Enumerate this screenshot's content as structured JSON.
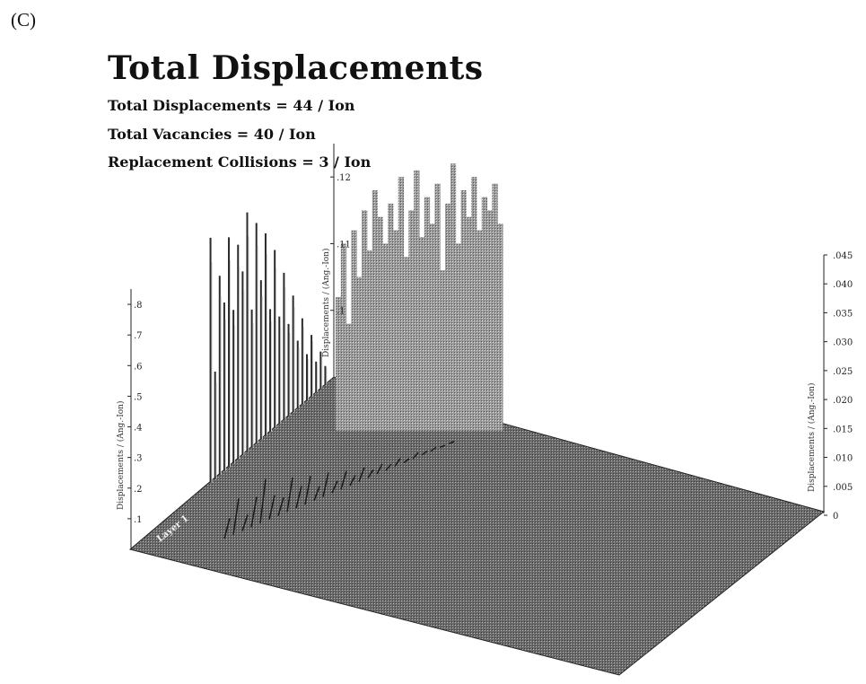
{
  "panel_label": "(C)",
  "chart_data": {
    "type": "area",
    "title": "Total Displacements",
    "stats": [
      "Total Displacements = 44 / Ion",
      "Total Vacancies = 40 / Ion",
      "Replacement Collisions = 3 / Ion"
    ],
    "grid": false,
    "axes": {
      "left": {
        "label": "Displacements / (Ang.-Ion)",
        "ticks": [
          ".1",
          ".2",
          ".3",
          ".4",
          ".5",
          ".6",
          ".7",
          ".8"
        ],
        "ylim": [
          0,
          0.85
        ]
      },
      "back": {
        "label": "Displacements / (Ang.-Ion)",
        "ticks": [
          ".1",
          ".11",
          ".12"
        ],
        "ylim": [
          0.09,
          0.125
        ]
      },
      "right": {
        "label": "Displacements / (Ang.-Ion)",
        "ticks": [
          "0",
          ".005",
          ".010",
          ".015",
          ".020",
          ".025",
          ".030",
          ".035",
          ".040",
          ".045"
        ],
        "ylim": [
          0,
          0.045
        ]
      }
    },
    "floor_label": "Layer 1",
    "series": [
      {
        "values": [
          0.8,
          0.35,
          0.65,
          0.55,
          0.75,
          0.5,
          0.7,
          0.6,
          0.78,
          0.45,
          0.72,
          0.52,
          0.66,
          0.4,
          0.58,
          0.35,
          0.48,
          0.3,
          0.38,
          0.22,
          0.28,
          0.15,
          0.2,
          0.1,
          0.12,
          0.06
        ]
      },
      {
        "values": [
          0.102,
          0.11,
          0.098,
          0.112,
          0.105,
          0.115,
          0.109,
          0.118,
          0.114,
          0.11,
          0.116,
          0.112,
          0.12,
          0.108,
          0.115,
          0.121,
          0.111,
          0.117,
          0.113,
          0.119,
          0.106,
          0.116,
          0.122,
          0.11,
          0.118,
          0.114,
          0.12,
          0.112,
          0.117,
          0.115,
          0.119,
          0.113
        ]
      },
      {
        "values": [
          0.01,
          0.018,
          0.008,
          0.015,
          0.022,
          0.012,
          0.009,
          0.017,
          0.011,
          0.014,
          0.007,
          0.012,
          0.006,
          0.009,
          0.005,
          0.007,
          0.004,
          0.005,
          0.003,
          0.004,
          0.002,
          0.003,
          0.002,
          0.002,
          0.001,
          0.001
        ]
      }
    ]
  }
}
